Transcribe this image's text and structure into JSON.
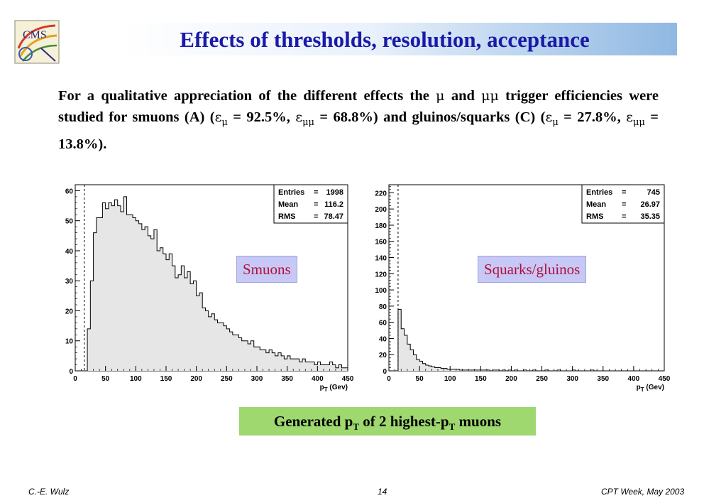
{
  "slide": {
    "title": "Effects of thresholds, resolution, acceptance",
    "intro": {
      "t1": "For a qualitative appreciation of the different effects the ",
      "mu": "μ",
      "t2": " and ",
      "mumu": "μμ",
      "t3": " trigger efficiencies were studied for smuons (A) (",
      "eps1": "ε",
      "sub1": "μ",
      "t4": " = 92.5%, ",
      "eps2": "ε",
      "sub2": "μμ",
      "t5": " = 68.8%) and gluinos/squarks (C) (",
      "eps3": "ε",
      "sub3": "μ",
      "t6": " = 27.8%, ",
      "eps4": "ε",
      "sub4": "μμ",
      "t7": " = 13.8%)."
    },
    "labels": {
      "smuons": "Smuons",
      "squarks": "Squarks/gluinos"
    },
    "caption": {
      "c1": "Generated p",
      "c2": "T",
      "c3": " of 2 highest-p",
      "c4": "T",
      "c5": " muons"
    },
    "footer": {
      "author": "C.-E. Wulz",
      "page": "14",
      "event": "CPT Week, May 2003"
    }
  },
  "colors": {
    "title": "#1a1aa8",
    "label_text": "#b0103a",
    "label_bg": "#c8c8f6",
    "caption_bg": "#9ed86f",
    "hist_fill": "#e6e6e6"
  },
  "chart_data": [
    {
      "type": "bar",
      "name": "smuons-histogram",
      "xlabel": "pT (Gev)",
      "xlabel_main": "p",
      "xlabel_sub": "T",
      "xlabel_rest": " (Gev)",
      "xlim": [
        0,
        450
      ],
      "ylim": [
        0,
        62
      ],
      "xticks": [
        0,
        50,
        100,
        150,
        200,
        250,
        300,
        350,
        400,
        450
      ],
      "yticks": [
        0,
        10,
        20,
        30,
        40,
        50,
        60
      ],
      "threshold_x": 15,
      "bin_width": 5,
      "stats": [
        {
          "label": "Entries",
          "value": "1998"
        },
        {
          "label": "Mean",
          "value": "116.2"
        },
        {
          "label": "RMS",
          "value": "78.47"
        }
      ],
      "values": [
        0,
        0,
        0,
        0,
        14,
        30,
        46,
        51,
        51,
        56,
        54,
        56,
        55,
        57,
        55,
        53,
        58,
        52,
        52,
        51,
        50,
        49,
        47,
        48,
        45,
        44,
        47,
        40,
        41,
        39,
        37,
        39,
        35,
        31,
        32,
        35,
        31,
        33,
        29,
        30,
        25,
        26,
        21,
        20,
        18,
        19,
        17,
        16,
        16,
        15,
        14,
        13,
        12,
        12,
        11,
        10,
        10,
        9,
        10,
        8,
        8,
        7,
        7,
        6,
        7,
        6,
        5,
        6,
        5,
        4,
        5,
        4,
        4,
        4,
        3,
        4,
        3,
        3,
        3,
        2,
        3,
        2,
        2,
        2,
        3,
        2,
        1,
        2,
        1,
        1
      ]
    },
    {
      "type": "bar",
      "name": "squarks-gluinos-histogram",
      "xlabel": "pT (Gev)",
      "xlabel_main": "p",
      "xlabel_sub": "T",
      "xlabel_rest": " (Gev)",
      "xlim": [
        0,
        450
      ],
      "ylim": [
        0,
        230
      ],
      "xticks": [
        0,
        50,
        100,
        150,
        200,
        250,
        300,
        350,
        400,
        450
      ],
      "yticks": [
        0,
        20,
        40,
        60,
        80,
        100,
        120,
        140,
        160,
        180,
        200,
        220
      ],
      "threshold_x": 15,
      "bin_width": 5,
      "stats": [
        {
          "label": "Entries",
          "value": "745"
        },
        {
          "label": "Mean",
          "value": "26.97"
        },
        {
          "label": "RMS",
          "value": "35.35"
        }
      ],
      "values": [
        0,
        0,
        0,
        76,
        52,
        44,
        33,
        26,
        20,
        14,
        12,
        9,
        7,
        6,
        5,
        4,
        4,
        3,
        3,
        2,
        2,
        2,
        2,
        1,
        1,
        1,
        1,
        1,
        1,
        1,
        1,
        1,
        1,
        0,
        1,
        1,
        0,
        1,
        0,
        1,
        0,
        1,
        0,
        0,
        1,
        0,
        0,
        1,
        0,
        0,
        0,
        1,
        0,
        0,
        0,
        1,
        0,
        0,
        0,
        0,
        1,
        0,
        0,
        0,
        0,
        0,
        1,
        0,
        0,
        0,
        0,
        0,
        0,
        0,
        0,
        0,
        0,
        0,
        0,
        0,
        0,
        0,
        0,
        0,
        0,
        0,
        0,
        0,
        0,
        0
      ]
    }
  ]
}
